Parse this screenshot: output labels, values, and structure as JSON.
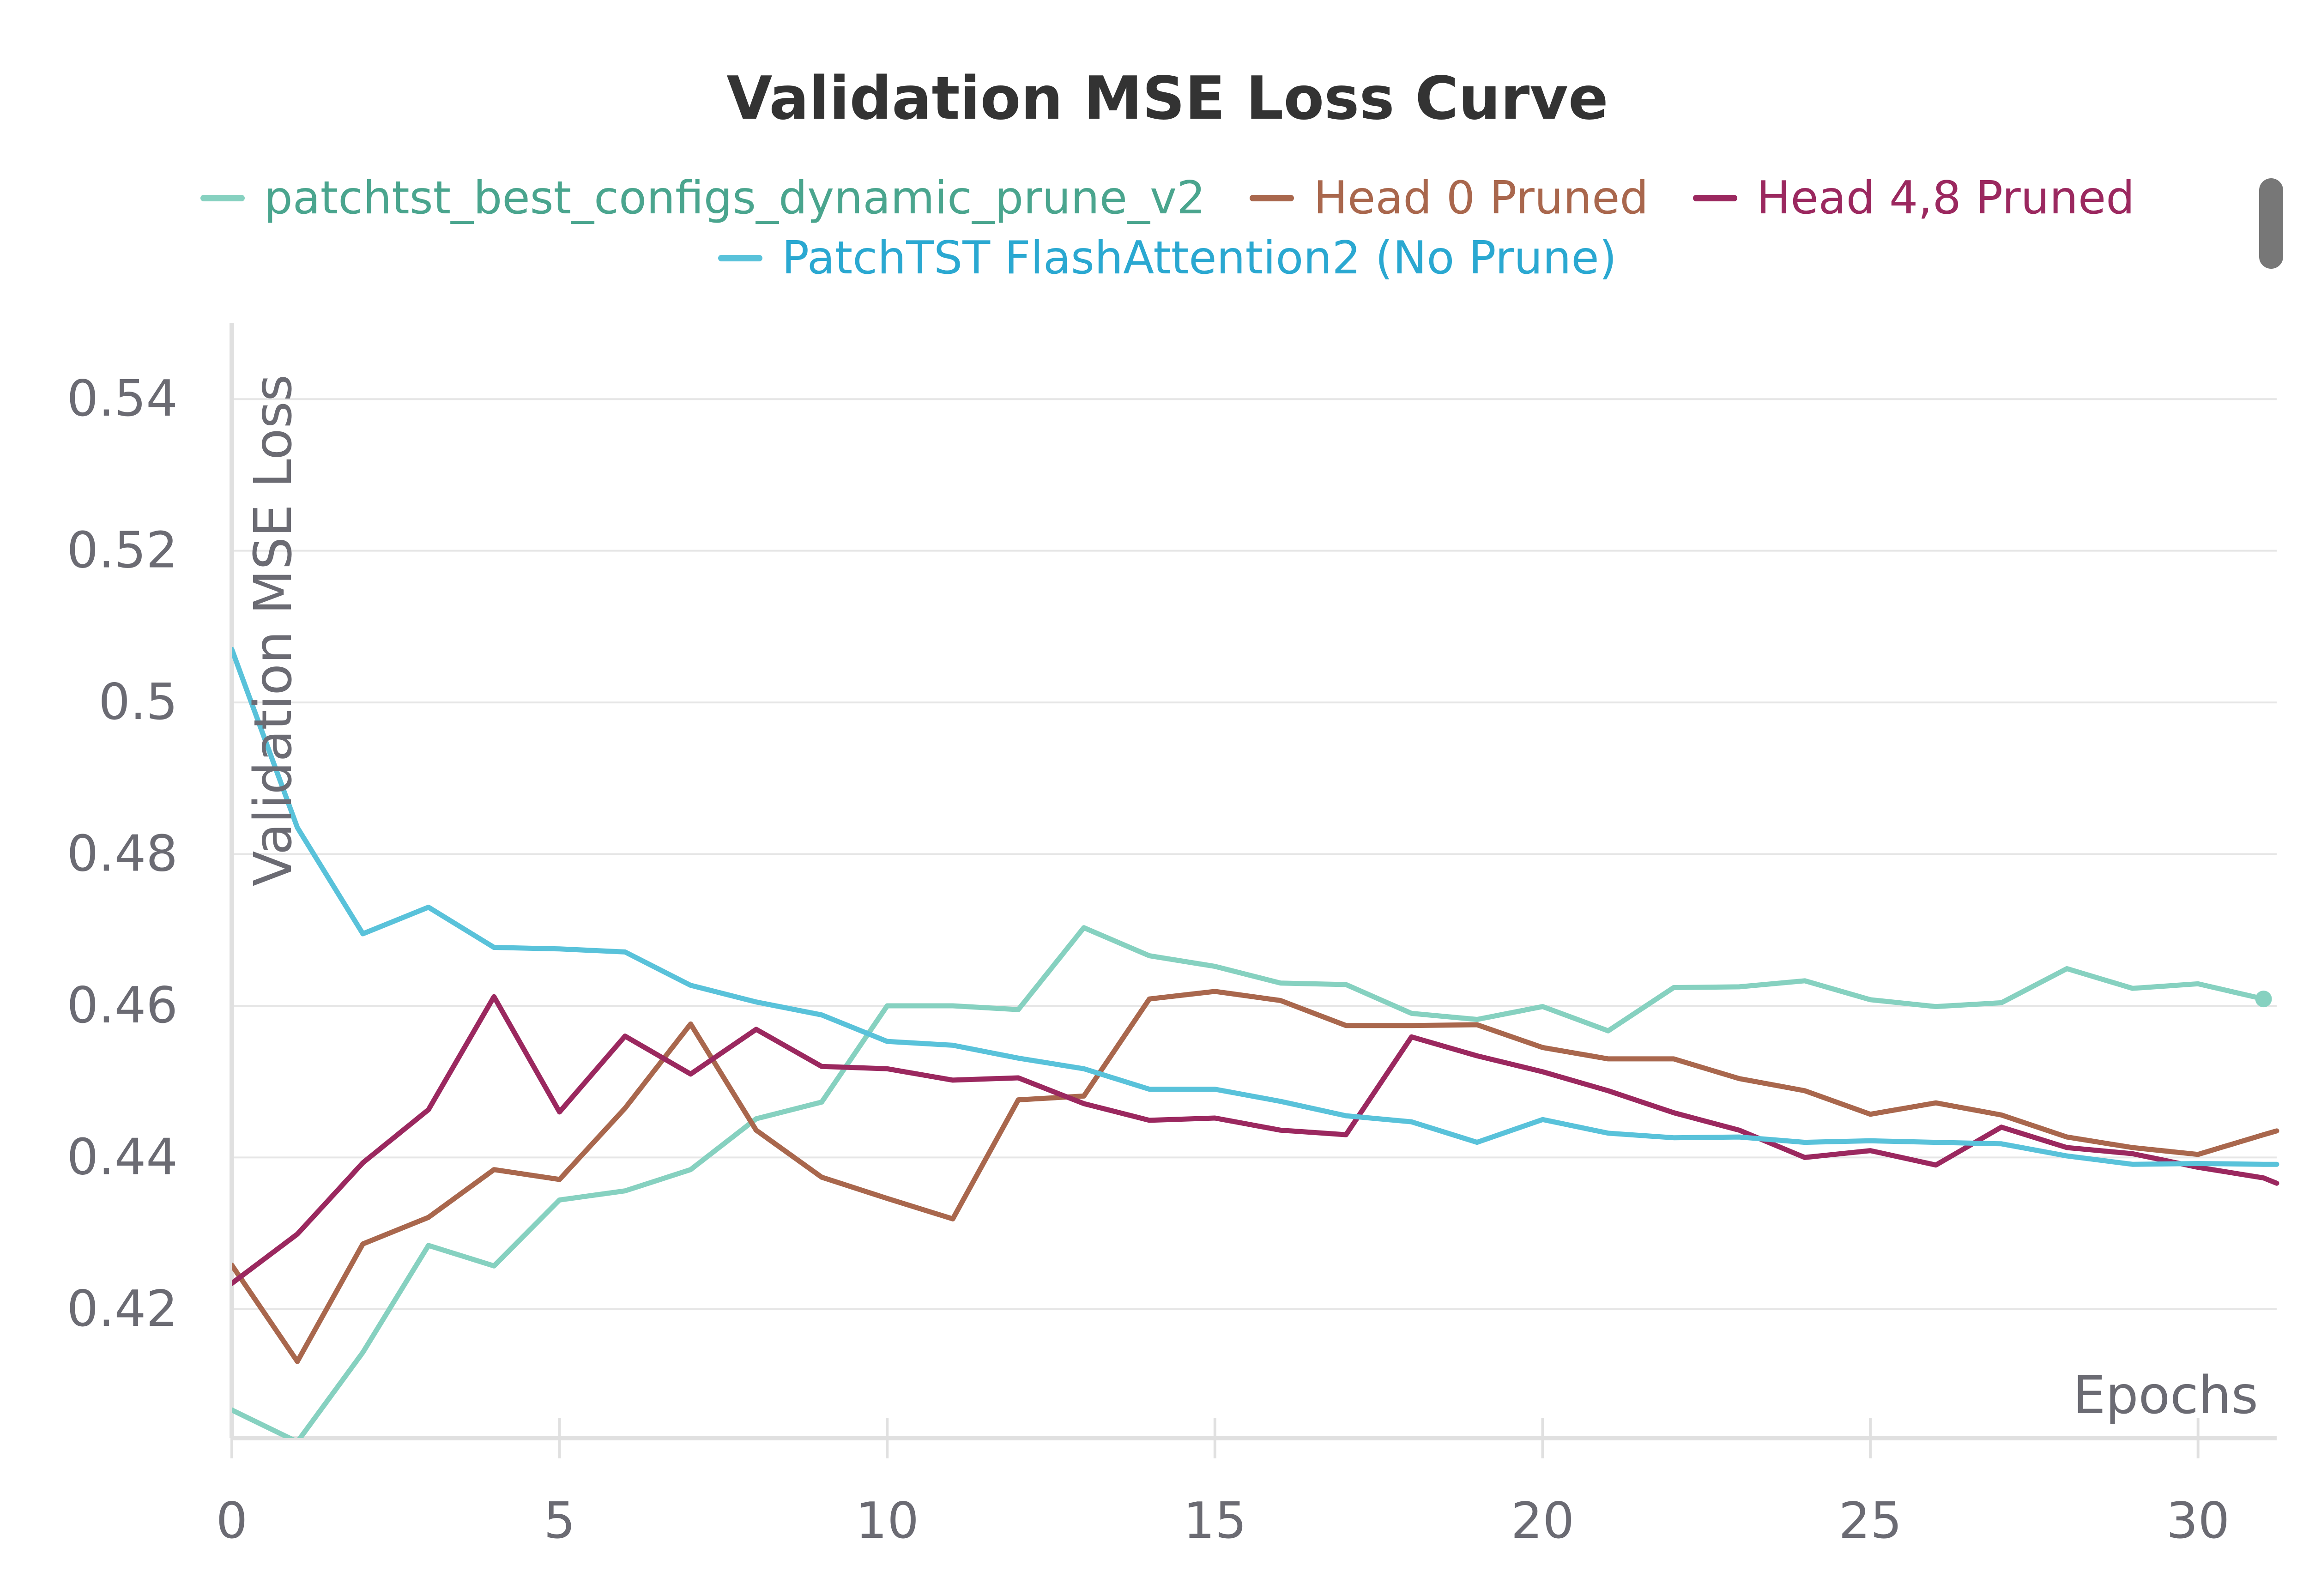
{
  "chart_data": {
    "type": "line",
    "title": "Validation MSE Loss Curve",
    "xlabel": "Epochs",
    "ylabel": "Validation MSE Loss",
    "xlim": [
      0,
      31.2
    ],
    "ylim": [
      0.403,
      0.55
    ],
    "xticks": [
      0,
      5,
      10,
      15,
      20,
      25,
      30
    ],
    "xtick_labels": [
      "0",
      "5",
      "10",
      "15",
      "20",
      "25",
      "30"
    ],
    "yticks": [
      0.42,
      0.44,
      0.46,
      0.48,
      0.5,
      0.52,
      0.54
    ],
    "ytick_labels": [
      "0.42",
      "0.44",
      "0.46",
      "0.48",
      "0.5",
      "0.52",
      "0.54"
    ],
    "grid": true,
    "legend_position": "top",
    "x": [
      0,
      1,
      2,
      3,
      4,
      5,
      6,
      7,
      8,
      9,
      10,
      11,
      12,
      13,
      14,
      15,
      16,
      17,
      18,
      19,
      20,
      21,
      22,
      23,
      24,
      25,
      26,
      27,
      28,
      29,
      30,
      31
    ],
    "series": [
      {
        "name": "patchtst_best_configs_dynamic_prune_v2",
        "color": "#86d1c0",
        "text_color": "#4aa58e",
        "values": [
          0.4067,
          0.4025,
          0.4143,
          0.4284,
          0.4257,
          0.4344,
          0.4356,
          0.4384,
          0.4451,
          0.4473,
          0.46,
          0.46,
          0.4595,
          0.4703,
          0.4666,
          0.4652,
          0.463,
          0.4628,
          0.459,
          0.4582,
          0.4599,
          0.4567,
          0.4624,
          0.4625,
          0.4633,
          0.4608,
          0.4599,
          0.4604,
          0.4649,
          0.4623,
          0.4629,
          0.4609
        ],
        "end_marker": true
      },
      {
        "name": "Head 0 Pruned",
        "color": "#a9674d",
        "text_color": "#a9674d",
        "values": [
          0.4258,
          0.4131,
          0.4286,
          0.4321,
          0.4384,
          0.4371,
          0.4465,
          0.4576,
          0.4436,
          0.4374,
          0.4346,
          0.4319,
          0.4476,
          0.4481,
          0.4609,
          0.4619,
          0.4607,
          0.4574,
          0.4574,
          0.4575,
          0.4545,
          0.453,
          0.453,
          0.4504,
          0.4488,
          0.4457,
          0.4472,
          0.4456,
          0.4427,
          0.4413,
          0.4404,
          0.443
        ],
        "extend_to": [
          31.2,
          0.4435
        ]
      },
      {
        "name": "Head 4,8 Pruned",
        "color": "#9b285f",
        "text_color": "#9b285f",
        "values": [
          0.4234,
          0.4299,
          0.4393,
          0.4463,
          0.4612,
          0.446,
          0.456,
          0.451,
          0.4569,
          0.452,
          0.4517,
          0.4502,
          0.4505,
          0.4471,
          0.4449,
          0.4452,
          0.4436,
          0.443,
          0.4559,
          0.4534,
          0.4513,
          0.4488,
          0.4459,
          0.4436,
          0.44,
          0.4409,
          0.439,
          0.444,
          0.4413,
          0.4405,
          0.4387,
          0.4373
        ],
        "extend_to": [
          31.2,
          0.4366
        ]
      },
      {
        "name": "PatchTST FlashAttention2 (No Prune)",
        "color": "#59c2da",
        "text_color": "#2aa8d1",
        "values": [
          0.507,
          0.4835,
          0.4695,
          0.473,
          0.4677,
          0.4675,
          0.4671,
          0.4627,
          0.4605,
          0.4588,
          0.4553,
          0.4548,
          0.4531,
          0.4517,
          0.449,
          0.449,
          0.4474,
          0.4455,
          0.4447,
          0.442,
          0.445,
          0.4432,
          0.4426,
          0.4427,
          0.442,
          0.4422,
          0.442,
          0.4418,
          0.4402,
          0.4391,
          0.4392,
          0.4391
        ],
        "extend_to": [
          31.2,
          0.4391
        ]
      }
    ]
  }
}
